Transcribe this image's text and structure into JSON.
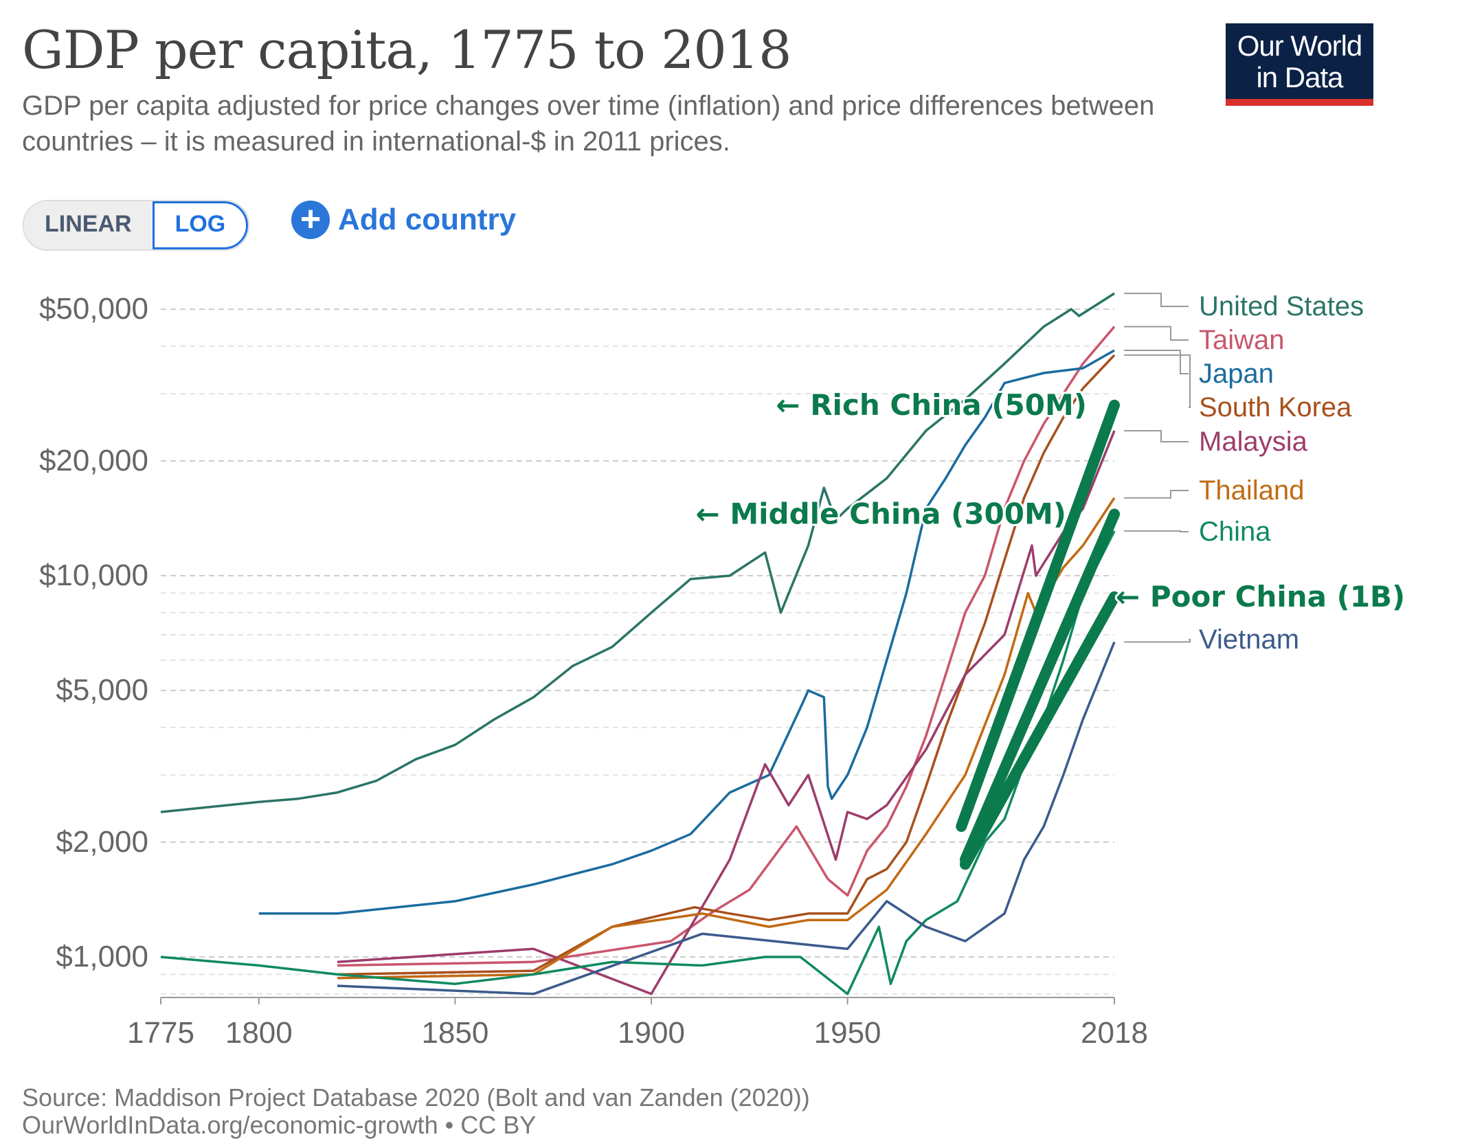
{
  "header": {
    "title": "GDP per capita, 1775 to 2018",
    "subtitle": "GDP per capita adjusted for price changes over time (inflation) and price differences between countries – it is measured in international-$ in 2011 prices.",
    "logo": "Our World in Data"
  },
  "controls": {
    "linear_label": "LINEAR",
    "log_label": "LOG",
    "add_country_label": "Add country",
    "add_icon": "plus-circle-icon"
  },
  "footer": {
    "source": "Source: Maddison Project Database 2020 (Bolt and van Zanden (2020))",
    "url": "OurWorldInData.org/economic-growth • CC BY"
  },
  "chart_data": {
    "type": "line",
    "yscale": "log",
    "xlim": [
      1775,
      2018
    ],
    "ylim": [
      800,
      55000
    ],
    "grid": "horizontal-dashed",
    "x_ticks": [
      1775,
      1800,
      1850,
      1900,
      1950,
      2018
    ],
    "y_ticks": [
      {
        "v": 1000,
        "label": "$1,000"
      },
      {
        "v": 2000,
        "label": "$2,000"
      },
      {
        "v": 5000,
        "label": "$5,000"
      },
      {
        "v": 10000,
        "label": "$10,000"
      },
      {
        "v": 20000,
        "label": "$20,000"
      },
      {
        "v": 50000,
        "label": "$50,000"
      }
    ],
    "series": [
      {
        "name": "United States",
        "color": "#2b7566",
        "points": [
          [
            1775,
            2400
          ],
          [
            1800,
            2550
          ],
          [
            1810,
            2600
          ],
          [
            1820,
            2700
          ],
          [
            1830,
            2900
          ],
          [
            1840,
            3300
          ],
          [
            1850,
            3600
          ],
          [
            1860,
            4200
          ],
          [
            1870,
            4800
          ],
          [
            1880,
            5800
          ],
          [
            1890,
            6500
          ],
          [
            1900,
            8000
          ],
          [
            1910,
            9800
          ],
          [
            1920,
            10000
          ],
          [
            1929,
            11500
          ],
          [
            1933,
            8000
          ],
          [
            1940,
            12000
          ],
          [
            1944,
            17000
          ],
          [
            1947,
            14000
          ],
          [
            1950,
            15000
          ],
          [
            1960,
            18000
          ],
          [
            1970,
            24000
          ],
          [
            1980,
            29000
          ],
          [
            1990,
            36000
          ],
          [
            2000,
            45000
          ],
          [
            2007,
            50000
          ],
          [
            2009,
            48000
          ],
          [
            2018,
            55000
          ]
        ]
      },
      {
        "name": "Taiwan",
        "color": "#c9566c",
        "points": [
          [
            1820,
            950
          ],
          [
            1870,
            970
          ],
          [
            1905,
            1100
          ],
          [
            1915,
            1300
          ],
          [
            1925,
            1500
          ],
          [
            1937,
            2200
          ],
          [
            1945,
            1600
          ],
          [
            1950,
            1450
          ],
          [
            1955,
            1900
          ],
          [
            1960,
            2200
          ],
          [
            1965,
            2800
          ],
          [
            1970,
            3800
          ],
          [
            1975,
            5500
          ],
          [
            1980,
            8000
          ],
          [
            1985,
            10000
          ],
          [
            1990,
            15000
          ],
          [
            1995,
            20000
          ],
          [
            2000,
            25000
          ],
          [
            2005,
            30000
          ],
          [
            2010,
            36000
          ],
          [
            2018,
            45000
          ]
        ]
      },
      {
        "name": "Japan",
        "color": "#1a6c9e",
        "points": [
          [
            1800,
            1300
          ],
          [
            1820,
            1300
          ],
          [
            1850,
            1400
          ],
          [
            1870,
            1550
          ],
          [
            1890,
            1750
          ],
          [
            1900,
            1900
          ],
          [
            1910,
            2100
          ],
          [
            1920,
            2700
          ],
          [
            1930,
            3000
          ],
          [
            1938,
            4500
          ],
          [
            1940,
            5000
          ],
          [
            1944,
            4800
          ],
          [
            1945,
            2800
          ],
          [
            1946,
            2600
          ],
          [
            1950,
            3000
          ],
          [
            1955,
            4000
          ],
          [
            1960,
            6000
          ],
          [
            1965,
            9000
          ],
          [
            1970,
            15000
          ],
          [
            1975,
            18000
          ],
          [
            1980,
            22000
          ],
          [
            1985,
            26000
          ],
          [
            1990,
            32000
          ],
          [
            1995,
            33000
          ],
          [
            2000,
            34000
          ],
          [
            2010,
            35000
          ],
          [
            2018,
            39000
          ]
        ]
      },
      {
        "name": "South Korea",
        "color": "#a8501c",
        "points": [
          [
            1820,
            900
          ],
          [
            1870,
            920
          ],
          [
            1890,
            1200
          ],
          [
            1911,
            1350
          ],
          [
            1920,
            1300
          ],
          [
            1930,
            1250
          ],
          [
            1940,
            1300
          ],
          [
            1950,
            1300
          ],
          [
            1955,
            1600
          ],
          [
            1960,
            1700
          ],
          [
            1965,
            2000
          ],
          [
            1970,
            2800
          ],
          [
            1975,
            4000
          ],
          [
            1980,
            5500
          ],
          [
            1985,
            7500
          ],
          [
            1990,
            11000
          ],
          [
            1995,
            16000
          ],
          [
            2000,
            21000
          ],
          [
            2005,
            26000
          ],
          [
            2010,
            31000
          ],
          [
            2018,
            37900
          ]
        ]
      },
      {
        "name": "Malaysia",
        "color": "#9c3d6a",
        "points": [
          [
            1820,
            970
          ],
          [
            1870,
            1050
          ],
          [
            1900,
            800
          ],
          [
            1910,
            1200
          ],
          [
            1920,
            1800
          ],
          [
            1929,
            3200
          ],
          [
            1935,
            2500
          ],
          [
            1940,
            3000
          ],
          [
            1947,
            1800
          ],
          [
            1950,
            2400
          ],
          [
            1955,
            2300
          ],
          [
            1960,
            2500
          ],
          [
            1970,
            3500
          ],
          [
            1980,
            5500
          ],
          [
            1990,
            7000
          ],
          [
            1997,
            12000
          ],
          [
            1998,
            10000
          ],
          [
            2005,
            13000
          ],
          [
            2010,
            15000
          ],
          [
            2018,
            24000
          ]
        ]
      },
      {
        "name": "Thailand",
        "color": "#c26a12",
        "points": [
          [
            1820,
            880
          ],
          [
            1870,
            900
          ],
          [
            1890,
            1200
          ],
          [
            1913,
            1300
          ],
          [
            1930,
            1200
          ],
          [
            1940,
            1250
          ],
          [
            1950,
            1250
          ],
          [
            1960,
            1500
          ],
          [
            1970,
            2100
          ],
          [
            1980,
            3000
          ],
          [
            1990,
            5500
          ],
          [
            1996,
            9000
          ],
          [
            1998,
            8000
          ],
          [
            2005,
            10500
          ],
          [
            2010,
            12000
          ],
          [
            2018,
            16000
          ]
        ]
      },
      {
        "name": "China",
        "color": "#0f8a5f",
        "points": [
          [
            1775,
            1000
          ],
          [
            1800,
            950
          ],
          [
            1820,
            900
          ],
          [
            1850,
            850
          ],
          [
            1870,
            900
          ],
          [
            1890,
            970
          ],
          [
            1913,
            950
          ],
          [
            1929,
            1000
          ],
          [
            1938,
            1000
          ],
          [
            1950,
            800
          ],
          [
            1958,
            1200
          ],
          [
            1961,
            850
          ],
          [
            1965,
            1100
          ],
          [
            1970,
            1250
          ],
          [
            1978,
            1400
          ],
          [
            1985,
            2000
          ],
          [
            1990,
            2300
          ],
          [
            1995,
            3200
          ],
          [
            2000,
            4200
          ],
          [
            2005,
            6000
          ],
          [
            2010,
            9000
          ],
          [
            2018,
            13100
          ]
        ]
      },
      {
        "name": "Vietnam",
        "color": "#3b5b8c",
        "points": [
          [
            1820,
            840
          ],
          [
            1870,
            800
          ],
          [
            1913,
            1150
          ],
          [
            1950,
            1050
          ],
          [
            1960,
            1400
          ],
          [
            1970,
            1200
          ],
          [
            1980,
            1100
          ],
          [
            1990,
            1300
          ],
          [
            1995,
            1800
          ],
          [
            2000,
            2200
          ],
          [
            2005,
            3000
          ],
          [
            2010,
            4200
          ],
          [
            2018,
            6700
          ]
        ]
      }
    ],
    "legend_labels": [
      {
        "name": "United States",
        "color": "#2b7566",
        "v": 55000,
        "ly": 446
      },
      {
        "name": "Taiwan",
        "color": "#c9566c",
        "v": 45000,
        "ly": 495
      },
      {
        "name": "Japan",
        "color": "#1a6c9e",
        "v": 39000,
        "ly": 544
      },
      {
        "name": "South Korea",
        "color": "#a8501c",
        "v": 37900,
        "ly": 593
      },
      {
        "name": "Malaysia",
        "color": "#9c3d6a",
        "v": 24000,
        "ly": 643
      },
      {
        "name": "Thailand",
        "color": "#c26a12",
        "v": 16000,
        "ly": 714
      },
      {
        "name": "China",
        "color": "#0f8a5f",
        "v": 13100,
        "ly": 774
      },
      {
        "name": "Vietnam",
        "color": "#3b5b8c",
        "v": 6700,
        "ly": 931
      }
    ],
    "annotations": [
      {
        "label": "← Rich China (50M)",
        "color": "#0b7a4d",
        "from": [
          1979,
          2200
        ],
        "to": [
          2018,
          28000
        ]
      },
      {
        "label": "← Middle China (300M)",
        "color": "#0b7a4d",
        "from": [
          1980,
          1800
        ],
        "to": [
          2018,
          14500
        ]
      },
      {
        "label": "← Poor China (1B)",
        "color": "#0b7a4d",
        "from": [
          1980,
          1750
        ],
        "to": [
          2018,
          8800
        ]
      }
    ]
  }
}
